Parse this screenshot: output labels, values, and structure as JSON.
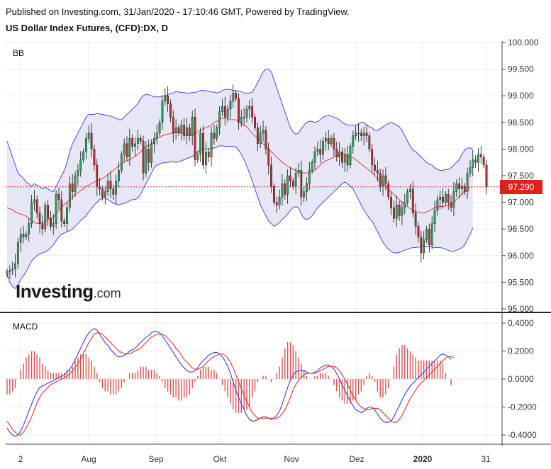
{
  "header": {
    "published": "Published on Investing.com, 31/Jan/2020 - 17:10:46 GMT, Powered by TradingView.",
    "title": "US Dollar Index Futures, (CFD):DX, D"
  },
  "panels": {
    "top_label": "BB",
    "bottom_label": "MACD"
  },
  "watermark": {
    "brand": "Investing",
    "suffix": ".com"
  },
  "last_price": "97.290",
  "colors": {
    "up": "#26a65b",
    "down": "#c62828",
    "band": "#4a4ae0",
    "band_fill": "#e6e6f5",
    "basis": "#e04040",
    "macd": "#3a3af0",
    "signal": "#e83030",
    "hist": "#e05050",
    "price_tag": "#e0201b"
  },
  "chart_data": [
    {
      "type": "candlestick",
      "overlay": "bollinger",
      "x_ticks": [
        "2",
        "Aug",
        "Sep",
        "Okt",
        "Nov",
        "Dez",
        "2020",
        "31"
      ],
      "y_ticks": [
        "100.000",
        "99.500",
        "99.000",
        "98.500",
        "98.000",
        "97.500",
        "97.000",
        "96.500",
        "96.000",
        "95.500",
        "95.000"
      ],
      "ylim": [
        95.0,
        100.0
      ],
      "close": [
        95.7,
        95.72,
        95.75,
        95.85,
        96.25,
        96.4,
        96.35,
        96.4,
        96.6,
        97.0,
        97.05,
        96.8,
        96.6,
        96.5,
        96.95,
        96.7,
        96.55,
        96.6,
        97.15,
        97.05,
        96.65,
        96.6,
        96.9,
        97.35,
        97.2,
        97.5,
        97.6,
        97.8,
        97.95,
        98.2,
        98.3,
        98.0,
        97.7,
        97.3,
        97.25,
        97.1,
        97.2,
        97.4,
        97.25,
        97.15,
        97.4,
        97.6,
        97.9,
        98.1,
        97.85,
        98.2,
        98.05,
        98.1,
        98.2,
        98.15,
        97.55,
        98.0,
        97.75,
        98.1,
        98.2,
        98.3,
        98.5,
        98.9,
        99.0,
        98.85,
        98.6,
        98.3,
        98.4,
        98.3,
        98.45,
        98.25,
        98.4,
        98.25,
        98.6,
        97.8,
        97.9,
        98.3,
        97.7,
        97.95,
        97.85,
        98.3,
        98.2,
        98.4,
        98.7,
        98.8,
        98.6,
        98.75,
        98.9,
        99.05,
        98.95,
        98.5,
        98.6,
        98.6,
        98.75,
        98.8,
        98.6,
        98.4,
        98.1,
        98.3,
        98.35,
        98.0,
        97.7,
        97.3,
        97.0,
        96.95,
        97.1,
        97.35,
        97.15,
        97.5,
        97.4,
        97.3,
        97.55,
        97.6,
        97.1,
        97.2,
        97.35,
        97.6,
        97.75,
        97.95,
        98.0,
        97.9,
        98.15,
        98.2,
        98.1,
        98.2,
        98.0,
        97.85,
        97.95,
        97.75,
        97.9,
        97.7,
        98.05,
        98.25,
        98.3,
        98.3,
        98.25,
        98.3,
        98.25,
        98.0,
        97.7,
        97.6,
        97.55,
        97.3,
        97.5,
        97.35,
        97.1,
        96.9,
        96.7,
        96.95,
        96.75,
        96.9,
        97.0,
        97.2,
        97.25,
        96.8,
        96.55,
        96.35,
        96.05,
        96.3,
        96.5,
        96.2,
        96.6,
        96.85,
        97.05,
        97.1,
        97.0,
        97.15,
        97.0,
        96.9,
        97.2,
        97.35,
        97.25,
        97.3,
        97.2,
        97.55,
        97.65,
        97.8,
        97.75,
        97.9,
        97.85,
        97.7,
        97.29
      ],
      "bb_upper": [
        98.15,
        98.0,
        97.85,
        97.7,
        97.55,
        97.5,
        97.45,
        97.38,
        97.35,
        97.3,
        97.35,
        97.32,
        97.3,
        97.25,
        97.28,
        97.25,
        97.22,
        97.2,
        97.3,
        97.4,
        97.5,
        97.6,
        97.75,
        97.95,
        98.1,
        98.2,
        98.3,
        98.4,
        98.5,
        98.6,
        98.65,
        98.65,
        98.65,
        98.67,
        98.66,
        98.65,
        98.64,
        98.63,
        98.62,
        98.6,
        98.58,
        98.55,
        98.55,
        98.6,
        98.65,
        98.7,
        98.75,
        98.8,
        98.85,
        98.95,
        99.0,
        99.03,
        99.02,
        99.0,
        98.98,
        98.98,
        98.98,
        99.0,
        99.0,
        99.02,
        99.05,
        99.05,
        99.08,
        99.07,
        99.06,
        99.06,
        99.05,
        99.05,
        99.06,
        99.06,
        99.08,
        99.1,
        99.1,
        99.1,
        99.08,
        99.07,
        99.07,
        99.05,
        99.07,
        99.1,
        99.12,
        99.12,
        99.12,
        99.1,
        99.1,
        99.08,
        99.08,
        99.05,
        99.05,
        99.05,
        99.07,
        99.15,
        99.25,
        99.35,
        99.45,
        99.5,
        99.5,
        99.45,
        99.3,
        99.15,
        99.0,
        98.85,
        98.7,
        98.55,
        98.4,
        98.32,
        98.28,
        98.3,
        98.38,
        98.45,
        98.5,
        98.52,
        98.52,
        98.5,
        98.52,
        98.55,
        98.6,
        98.62,
        98.63,
        98.62,
        98.6,
        98.58,
        98.55,
        98.5,
        98.47,
        98.45,
        98.45,
        98.45,
        98.45,
        98.47,
        98.5,
        98.5,
        98.45,
        98.42,
        98.4,
        98.35,
        98.35,
        98.38,
        98.42,
        98.45,
        98.48,
        98.5,
        98.48,
        98.45,
        98.42,
        98.35,
        98.25,
        98.15,
        98.05,
        97.98,
        97.95,
        97.9,
        97.85,
        97.8,
        97.75,
        97.72,
        97.7,
        97.65,
        97.62,
        97.6,
        97.6,
        97.62,
        97.62,
        97.65,
        97.7,
        97.75,
        97.8,
        97.9,
        97.98,
        98.02,
        98.02,
        98.0
      ],
      "bb_basis": [
        96.9,
        96.88,
        96.86,
        96.82,
        96.8,
        96.78,
        96.76,
        96.74,
        96.7,
        96.66,
        96.63,
        96.6,
        96.6,
        96.62,
        96.65,
        96.67,
        96.7,
        96.72,
        96.78,
        96.85,
        96.9,
        96.96,
        97.0,
        97.05,
        97.1,
        97.15,
        97.18,
        97.22,
        97.25,
        97.3,
        97.32,
        97.35,
        97.38,
        97.4,
        97.42,
        97.45,
        97.48,
        97.52,
        97.56,
        97.6,
        97.64,
        97.68,
        97.72,
        97.75,
        97.78,
        97.8,
        97.83,
        97.86,
        97.9,
        97.95,
        98.0,
        98.05,
        98.07,
        98.1,
        98.15,
        98.2,
        98.22,
        98.25,
        98.27,
        98.28,
        98.29,
        98.3,
        98.31,
        98.32,
        98.3,
        98.28,
        98.27,
        98.26,
        98.28,
        98.3,
        98.32,
        98.35,
        98.38,
        98.4,
        98.42,
        98.45,
        98.5,
        98.52,
        98.55,
        98.58,
        98.58,
        98.57,
        98.55,
        98.55,
        98.55,
        98.52,
        98.48,
        98.45,
        98.42,
        98.35,
        98.3,
        98.25,
        98.2,
        98.15,
        98.1,
        98.05,
        98.0,
        97.95,
        97.9,
        97.85,
        97.8,
        97.75,
        97.72,
        97.68,
        97.65,
        97.62,
        97.6,
        97.58,
        97.56,
        97.55,
        97.55,
        97.56,
        97.58,
        97.6,
        97.65,
        97.7,
        97.75,
        97.78,
        97.8,
        97.82,
        97.85,
        97.87,
        97.9,
        97.9,
        97.9,
        97.88,
        97.86,
        97.84,
        97.8,
        97.76,
        97.72,
        97.68,
        97.64,
        97.6,
        97.55,
        97.5,
        97.45,
        97.4,
        97.35,
        97.3,
        97.25,
        97.2,
        97.15,
        97.1,
        97.05,
        97.0,
        96.96,
        96.92,
        96.88,
        96.85,
        96.82,
        96.82,
        96.8,
        96.8,
        96.82,
        96.84,
        96.87,
        96.9,
        96.92,
        96.92,
        96.92,
        96.93,
        96.95,
        96.98,
        97.0,
        97.05,
        97.1,
        97.15,
        97.2,
        97.25,
        97.28
      ],
      "bb_lower": [
        95.65,
        95.5,
        95.42,
        95.38,
        95.45,
        95.55,
        95.62,
        95.7,
        95.8,
        95.9,
        95.95,
        96.0,
        96.03,
        96.05,
        96.07,
        96.1,
        96.15,
        96.2,
        96.28,
        96.35,
        96.4,
        96.42,
        96.45,
        96.47,
        96.5,
        96.55,
        96.6,
        96.66,
        96.7,
        96.75,
        96.82,
        96.88,
        96.95,
        97.0,
        97.05,
        97.08,
        97.08,
        97.05,
        97.02,
        96.99,
        96.96,
        96.95,
        96.97,
        96.98,
        97.0,
        97.03,
        97.05,
        97.05,
        97.08,
        97.15,
        97.25,
        97.35,
        97.45,
        97.55,
        97.65,
        97.7,
        97.72,
        97.74,
        97.75,
        97.75,
        97.76,
        97.76,
        97.75,
        97.76,
        97.78,
        97.8,
        97.82,
        97.84,
        97.86,
        97.9,
        97.95,
        97.98,
        98.0,
        98.0,
        98.0,
        98.0,
        98.02,
        98.04,
        98.06,
        98.06,
        98.05,
        98.05,
        98.05,
        98.05,
        98.04,
        97.98,
        97.9,
        97.8,
        97.68,
        97.55,
        97.4,
        97.25,
        97.1,
        96.95,
        96.85,
        96.75,
        96.65,
        96.6,
        96.55,
        96.58,
        96.62,
        96.68,
        96.72,
        96.78,
        96.85,
        96.9,
        96.92,
        96.9,
        96.78,
        96.7,
        96.68,
        96.7,
        96.75,
        96.82,
        96.9,
        96.95,
        97.0,
        97.05,
        97.1,
        97.15,
        97.2,
        97.25,
        97.3,
        97.35,
        97.38,
        97.35,
        97.3,
        97.25,
        97.15,
        97.05,
        96.95,
        96.85,
        96.78,
        96.7,
        96.65,
        96.55,
        96.45,
        96.35,
        96.25,
        96.18,
        96.12,
        96.08,
        96.05,
        96.05,
        96.06,
        96.08,
        96.1,
        96.12,
        96.14,
        96.15,
        96.15,
        96.16,
        96.16,
        96.17,
        96.17,
        96.17,
        96.16,
        96.15,
        96.15,
        96.15,
        96.14,
        96.12,
        96.1,
        96.08,
        96.08,
        96.1,
        96.12,
        96.15,
        96.2,
        96.3,
        96.4,
        96.52
      ]
    },
    {
      "type": "line",
      "name": "MACD",
      "y_ticks": [
        "0.4000",
        "0.2000",
        "0.0000",
        "-0.2000",
        "-0.4000"
      ],
      "ylim": [
        -0.44,
        0.44
      ],
      "macd": [
        -0.35,
        -0.38,
        -0.4,
        -0.41,
        -0.4,
        -0.37,
        -0.33,
        -0.28,
        -0.23,
        -0.18,
        -0.13,
        -0.09,
        -0.06,
        -0.05,
        -0.04,
        -0.03,
        -0.02,
        -0.01,
        0.0,
        0.01,
        0.02,
        0.03,
        0.05,
        0.07,
        0.1,
        0.14,
        0.18,
        0.22,
        0.26,
        0.3,
        0.33,
        0.35,
        0.36,
        0.35,
        0.32,
        0.29,
        0.26,
        0.24,
        0.21,
        0.19,
        0.17,
        0.16,
        0.16,
        0.17,
        0.18,
        0.2,
        0.21,
        0.22,
        0.24,
        0.26,
        0.28,
        0.3,
        0.31,
        0.33,
        0.34,
        0.34,
        0.33,
        0.31,
        0.28,
        0.25,
        0.22,
        0.19,
        0.16,
        0.13,
        0.1,
        0.08,
        0.06,
        0.05,
        0.05,
        0.06,
        0.08,
        0.11,
        0.13,
        0.15,
        0.17,
        0.18,
        0.19,
        0.19,
        0.18,
        0.16,
        0.13,
        0.09,
        0.04,
        -0.02,
        -0.08,
        -0.13,
        -0.18,
        -0.22,
        -0.26,
        -0.29,
        -0.3,
        -0.3,
        -0.29,
        -0.28,
        -0.27,
        -0.27,
        -0.28,
        -0.29,
        -0.28,
        -0.26,
        -0.23,
        -0.18,
        -0.12,
        -0.06,
        -0.01,
        0.03,
        0.05,
        0.06,
        0.06,
        0.06,
        0.05,
        0.04,
        0.04,
        0.05,
        0.06,
        0.08,
        0.09,
        0.1,
        0.1,
        0.09,
        0.07,
        0.04,
        0.0,
        -0.04,
        -0.08,
        -0.12,
        -0.16,
        -0.19,
        -0.22,
        -0.23,
        -0.24,
        -0.23,
        -0.21,
        -0.2,
        -0.2,
        -0.22,
        -0.25,
        -0.28,
        -0.3,
        -0.31,
        -0.31,
        -0.3,
        -0.27,
        -0.23,
        -0.19,
        -0.15,
        -0.11,
        -0.08,
        -0.05,
        -0.03,
        -0.01,
        0.01,
        0.03,
        0.05,
        0.07,
        0.09,
        0.11,
        0.13,
        0.15,
        0.17,
        0.18,
        0.17,
        0.16,
        0.14
      ],
      "signal": [
        -0.3,
        -0.33,
        -0.36,
        -0.38,
        -0.4,
        -0.4,
        -0.38,
        -0.35,
        -0.31,
        -0.27,
        -0.22,
        -0.17,
        -0.13,
        -0.1,
        -0.08,
        -0.06,
        -0.04,
        -0.03,
        -0.02,
        -0.01,
        0.0,
        0.01,
        0.02,
        0.04,
        0.06,
        0.08,
        0.11,
        0.14,
        0.18,
        0.22,
        0.26,
        0.29,
        0.32,
        0.33,
        0.33,
        0.32,
        0.3,
        0.28,
        0.26,
        0.24,
        0.22,
        0.2,
        0.19,
        0.18,
        0.18,
        0.18,
        0.19,
        0.2,
        0.21,
        0.22,
        0.24,
        0.26,
        0.28,
        0.3,
        0.31,
        0.32,
        0.32,
        0.32,
        0.31,
        0.29,
        0.27,
        0.25,
        0.22,
        0.2,
        0.17,
        0.14,
        0.12,
        0.1,
        0.08,
        0.07,
        0.07,
        0.08,
        0.09,
        0.11,
        0.13,
        0.15,
        0.16,
        0.17,
        0.18,
        0.18,
        0.17,
        0.15,
        0.12,
        0.08,
        0.03,
        -0.02,
        -0.07,
        -0.12,
        -0.16,
        -0.2,
        -0.24,
        -0.26,
        -0.28,
        -0.28,
        -0.28,
        -0.28,
        -0.28,
        -0.28,
        -0.28,
        -0.28,
        -0.27,
        -0.25,
        -0.22,
        -0.18,
        -0.13,
        -0.08,
        -0.04,
        -0.01,
        0.01,
        0.03,
        0.04,
        0.04,
        0.04,
        0.04,
        0.05,
        0.06,
        0.07,
        0.08,
        0.09,
        0.09,
        0.09,
        0.08,
        0.06,
        0.03,
        0.0,
        -0.04,
        -0.08,
        -0.12,
        -0.15,
        -0.18,
        -0.2,
        -0.21,
        -0.22,
        -0.22,
        -0.21,
        -0.21,
        -0.21,
        -0.22,
        -0.24,
        -0.26,
        -0.28,
        -0.3,
        -0.31,
        -0.31,
        -0.29,
        -0.26,
        -0.22,
        -0.18,
        -0.14,
        -0.11,
        -0.08,
        -0.05,
        -0.03,
        -0.01,
        0.01,
        0.03,
        0.05,
        0.07,
        0.09,
        0.11,
        0.13,
        0.15,
        0.16,
        0.16,
        0.15
      ]
    }
  ]
}
